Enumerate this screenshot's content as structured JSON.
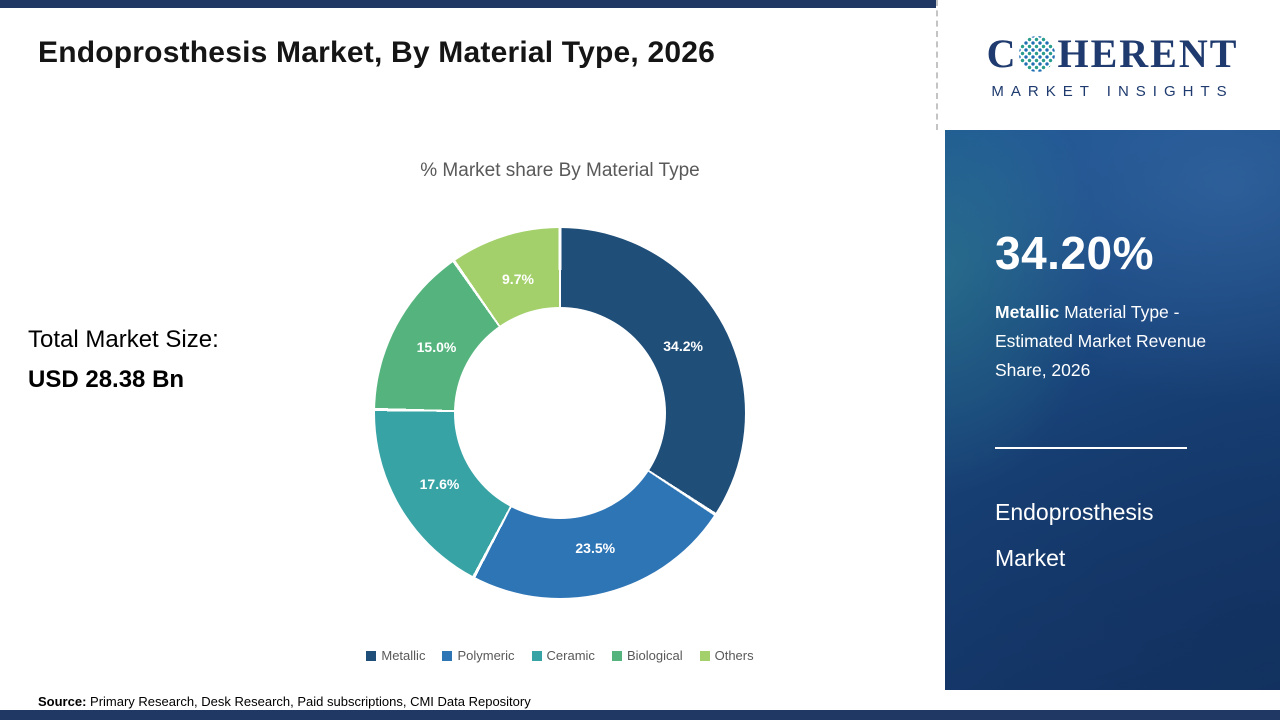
{
  "header": {
    "title": "Endoprosthesis Market, By Material Type, 2026"
  },
  "logo": {
    "wordmark_start": "C",
    "wordmark_end": "HERENT",
    "tagline": "MARKET INSIGHTS",
    "brand_navy": "#1e3a6e",
    "dot_teal": "#2a9d8f"
  },
  "left_panel": {
    "total_label": "Total Market Size:",
    "total_value": "USD 28.38 Bn"
  },
  "chart_data": {
    "type": "pie",
    "donut": true,
    "title": "% Market share By Material Type",
    "categories": [
      "Metallic",
      "Polymeric",
      "Ceramic",
      "Biological",
      "Others"
    ],
    "values": [
      34.2,
      23.5,
      17.6,
      15.0,
      9.7
    ],
    "labels": [
      "34.2%",
      "23.5%",
      "17.6%",
      "15.0%",
      "9.7%"
    ],
    "colors": [
      "#1f4e79",
      "#2e75b6",
      "#38a3a5",
      "#55b47e",
      "#a3d06a"
    ],
    "legend_position": "bottom",
    "start_angle_deg": 0,
    "direction": "clockwise"
  },
  "sidebar": {
    "stat_value": "34.20%",
    "stat_bold": "Metallic",
    "stat_rest": " Material Type - Estimated Market Revenue Share, 2026",
    "report_title": "Endoprosthesis Market"
  },
  "footer": {
    "source_label": "Source:",
    "source_text": " Primary Research, Desk Research, Paid subscriptions, CMI Data Repository"
  }
}
